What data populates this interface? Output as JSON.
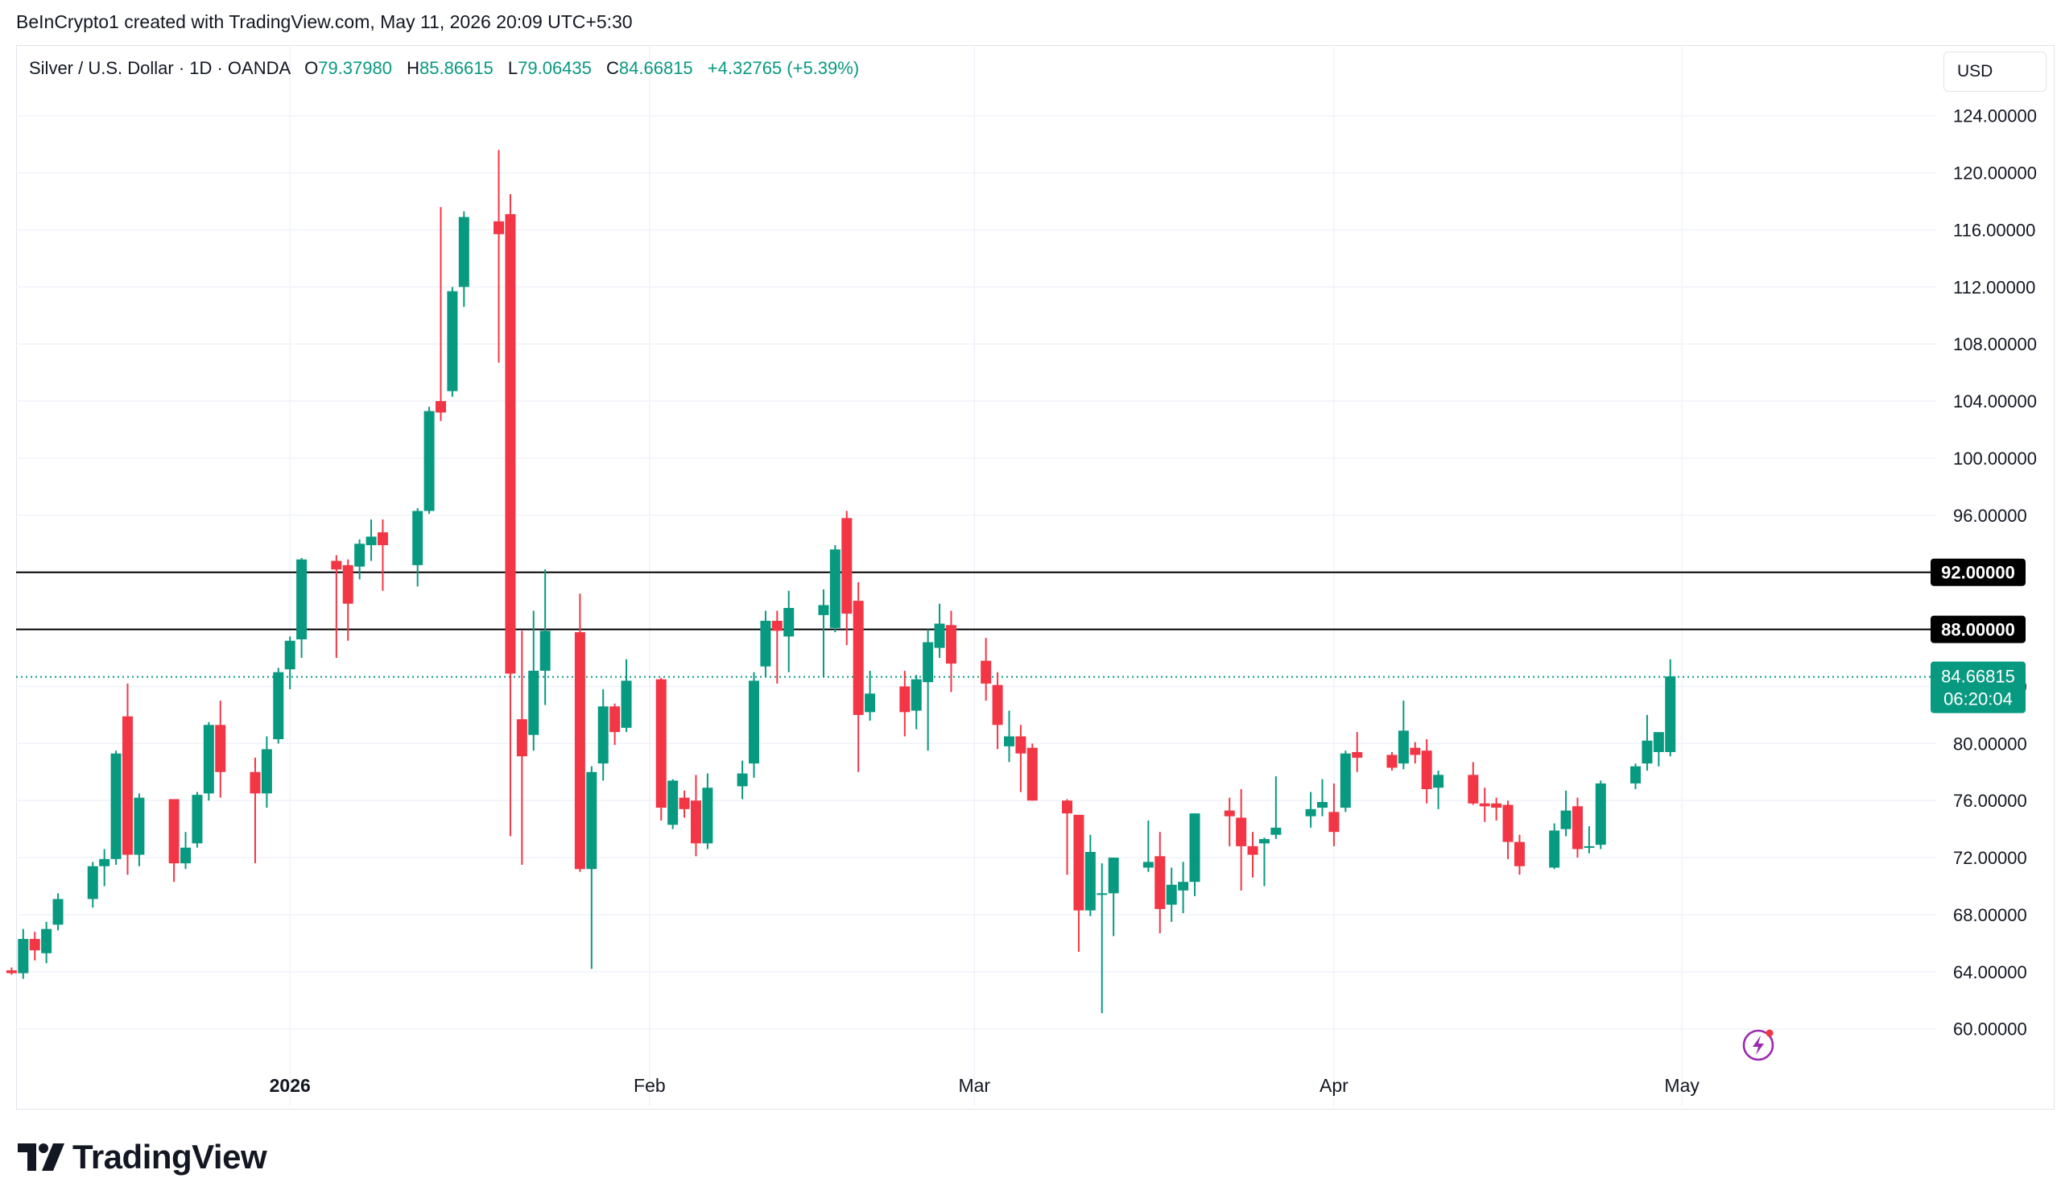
{
  "header": {
    "attribution": "BeInCrypto1 created with TradingView.com, May 11, 2026 20:09 UTC+5:30"
  },
  "legend": {
    "symbol": "Silver / U.S. Dollar · 1D · OANDA",
    "open_label": "O",
    "open": "79.37980",
    "high_label": "H",
    "high": "85.86615",
    "low_label": "L",
    "low": "79.06435",
    "close_label": "C",
    "close": "84.66815",
    "change": "+4.32765 (+5.39%)"
  },
  "currency": "USD",
  "footer": {
    "brand": "TradingView",
    "logo_mark": "17"
  },
  "colors": {
    "up": "#089981",
    "down": "#f23645",
    "grid": "#f0f3fa",
    "last_line": "#089981",
    "level_line": "#000000"
  },
  "icons": {
    "flash": "lightning-icon",
    "logo": "tradingview-logo-icon"
  },
  "chart_data": {
    "type": "candlestick",
    "ylim": [
      57.5,
      128.5
    ],
    "y_ticks": [
      124,
      120,
      116,
      112,
      108,
      104,
      100,
      96,
      92,
      88,
      84,
      80,
      76,
      72,
      68,
      64,
      60
    ],
    "y_tick_labels": [
      "124.00000",
      "120.00000",
      "116.00000",
      "112.00000",
      "108.00000",
      "104.00000",
      "100.00000",
      "96.00000",
      "92.00000",
      "88.00000",
      "84.00000",
      "80.00000",
      "76.00000",
      "72.00000",
      "68.00000",
      "64.00000",
      "60.00000"
    ],
    "x_labels": [
      {
        "label": "2026",
        "date": "2026-01-01",
        "bold": true
      },
      {
        "label": "Feb",
        "date": "2026-02-01",
        "bold": false
      },
      {
        "label": "Mar",
        "date": "2026-03-01",
        "bold": false
      },
      {
        "label": "Apr",
        "date": "2026-04-01",
        "bold": false
      },
      {
        "label": "May",
        "date": "2026-05-01",
        "bold": false
      }
    ],
    "horizontal_levels": [
      {
        "value": 92.0,
        "label": "92.00000"
      },
      {
        "value": 88.0,
        "label": "88.00000"
      }
    ],
    "last_price": {
      "value": 84.66815,
      "label": "84.66815",
      "countdown": "06:20:04"
    },
    "candles": [
      {
        "date": "2025-12-08",
        "o": 64.1,
        "h": 64.3,
        "l": 63.8,
        "c": 63.9
      },
      {
        "date": "2025-12-09",
        "o": 63.9,
        "h": 67.0,
        "l": 63.5,
        "c": 66.3
      },
      {
        "date": "2025-12-10",
        "o": 66.3,
        "h": 66.8,
        "l": 64.8,
        "c": 65.5
      },
      {
        "date": "2025-12-11",
        "o": 65.3,
        "h": 67.5,
        "l": 64.6,
        "c": 67.0
      },
      {
        "date": "2025-12-12",
        "o": 67.3,
        "h": 69.5,
        "l": 66.9,
        "c": 69.1
      },
      {
        "date": "2025-12-15",
        "o": 69.1,
        "h": 71.7,
        "l": 68.5,
        "c": 71.4
      },
      {
        "date": "2025-12-16",
        "o": 71.4,
        "h": 72.6,
        "l": 70.0,
        "c": 71.9
      },
      {
        "date": "2025-12-17",
        "o": 71.9,
        "h": 79.5,
        "l": 71.5,
        "c": 79.3
      },
      {
        "date": "2025-12-18",
        "o": 81.9,
        "h": 84.2,
        "l": 70.8,
        "c": 72.2
      },
      {
        "date": "2025-12-19",
        "o": 72.2,
        "h": 76.5,
        "l": 71.4,
        "c": 76.2
      },
      {
        "date": "2025-12-22",
        "o": 76.1,
        "h": 76.1,
        "l": 70.3,
        "c": 71.6
      },
      {
        "date": "2025-12-23",
        "o": 71.6,
        "h": 73.8,
        "l": 71.2,
        "c": 72.7
      },
      {
        "date": "2025-12-24",
        "o": 73.0,
        "h": 76.6,
        "l": 72.7,
        "c": 76.4
      },
      {
        "date": "2025-12-25",
        "o": 76.5,
        "h": 81.5,
        "l": 76.0,
        "c": 81.3
      },
      {
        "date": "2025-12-26",
        "o": 81.3,
        "h": 83.0,
        "l": 76.2,
        "c": 78.0
      },
      {
        "date": "2025-12-29",
        "o": 78.0,
        "h": 79.0,
        "l": 71.6,
        "c": 76.5
      },
      {
        "date": "2025-12-30",
        "o": 76.5,
        "h": 80.5,
        "l": 75.5,
        "c": 79.6
      },
      {
        "date": "2025-12-31",
        "o": 80.3,
        "h": 85.3,
        "l": 80.0,
        "c": 85.0
      },
      {
        "date": "2026-01-01",
        "o": 85.2,
        "h": 87.5,
        "l": 83.8,
        "c": 87.2
      },
      {
        "date": "2026-01-02",
        "o": 87.3,
        "h": 93.0,
        "l": 86.0,
        "c": 92.9
      },
      {
        "date": "2026-01-05",
        "o": 92.8,
        "h": 93.2,
        "l": 86.0,
        "c": 92.2
      },
      {
        "date": "2026-01-06",
        "o": 92.5,
        "h": 92.9,
        "l": 87.2,
        "c": 89.8
      },
      {
        "date": "2026-01-07",
        "o": 92.4,
        "h": 94.3,
        "l": 91.5,
        "c": 94.0
      },
      {
        "date": "2026-01-08",
        "o": 93.9,
        "h": 95.7,
        "l": 92.8,
        "c": 94.5
      },
      {
        "date": "2026-01-09",
        "o": 94.8,
        "h": 95.7,
        "l": 90.7,
        "c": 93.9
      },
      {
        "date": "2026-01-12",
        "o": 92.5,
        "h": 96.5,
        "l": 91.0,
        "c": 96.3
      },
      {
        "date": "2026-01-13",
        "o": 96.3,
        "h": 103.6,
        "l": 96.1,
        "c": 103.3
      },
      {
        "date": "2026-01-14",
        "o": 104.0,
        "h": 117.6,
        "l": 102.6,
        "c": 103.2
      },
      {
        "date": "2026-01-15",
        "o": 104.7,
        "h": 112.0,
        "l": 104.3,
        "c": 111.7
      },
      {
        "date": "2026-01-16",
        "o": 112.0,
        "h": 117.3,
        "l": 110.6,
        "c": 116.9
      },
      {
        "date": "2026-01-19",
        "o": 116.6,
        "h": 121.6,
        "l": 106.7,
        "c": 115.7
      },
      {
        "date": "2026-01-20",
        "o": 117.1,
        "h": 118.5,
        "l": 73.5,
        "c": 84.9
      },
      {
        "date": "2026-01-21",
        "o": 81.7,
        "h": 87.9,
        "l": 71.5,
        "c": 79.1
      },
      {
        "date": "2026-01-22",
        "o": 80.6,
        "h": 89.3,
        "l": 79.5,
        "c": 85.1
      },
      {
        "date": "2026-01-23",
        "o": 85.1,
        "h": 92.2,
        "l": 82.7,
        "c": 87.9
      },
      {
        "date": "2026-01-26",
        "o": 87.8,
        "h": 90.5,
        "l": 71.0,
        "c": 71.2
      },
      {
        "date": "2026-01-27",
        "o": 71.2,
        "h": 78.4,
        "l": 64.2,
        "c": 78.0
      },
      {
        "date": "2026-01-28",
        "o": 78.6,
        "h": 83.8,
        "l": 77.4,
        "c": 82.6
      },
      {
        "date": "2026-01-29",
        "o": 82.6,
        "h": 82.8,
        "l": 79.9,
        "c": 80.8
      },
      {
        "date": "2026-01-30",
        "o": 81.1,
        "h": 85.9,
        "l": 80.8,
        "c": 84.4
      },
      {
        "date": "2026-02-02",
        "o": 84.5,
        "h": 84.6,
        "l": 74.6,
        "c": 75.5
      },
      {
        "date": "2026-02-03",
        "o": 74.3,
        "h": 77.5,
        "l": 74.0,
        "c": 77.4
      },
      {
        "date": "2026-02-04",
        "o": 76.2,
        "h": 76.7,
        "l": 74.8,
        "c": 75.4
      },
      {
        "date": "2026-02-05",
        "o": 76.0,
        "h": 77.8,
        "l": 72.1,
        "c": 73.0
      },
      {
        "date": "2026-02-06",
        "o": 73.0,
        "h": 77.9,
        "l": 72.6,
        "c": 76.9
      },
      {
        "date": "2026-02-09",
        "o": 77.0,
        "h": 78.8,
        "l": 76.1,
        "c": 77.9
      },
      {
        "date": "2026-02-10",
        "o": 78.6,
        "h": 85.0,
        "l": 77.6,
        "c": 84.4
      },
      {
        "date": "2026-02-11",
        "o": 85.4,
        "h": 89.3,
        "l": 84.7,
        "c": 88.6
      },
      {
        "date": "2026-02-12",
        "o": 88.6,
        "h": 89.3,
        "l": 84.2,
        "c": 87.9
      },
      {
        "date": "2026-02-13",
        "o": 87.5,
        "h": 90.7,
        "l": 85.0,
        "c": 89.5
      },
      {
        "date": "2026-02-16",
        "o": 89.0,
        "h": 90.8,
        "l": 84.7,
        "c": 89.7
      },
      {
        "date": "2026-02-17",
        "o": 88.1,
        "h": 93.9,
        "l": 87.8,
        "c": 93.6
      },
      {
        "date": "2026-02-18",
        "o": 95.8,
        "h": 96.3,
        "l": 86.9,
        "c": 89.1
      },
      {
        "date": "2026-02-19",
        "o": 90.0,
        "h": 91.3,
        "l": 78.0,
        "c": 82.0
      },
      {
        "date": "2026-02-20",
        "o": 82.2,
        "h": 85.1,
        "l": 81.6,
        "c": 83.5
      },
      {
        "date": "2026-02-23",
        "o": 84.0,
        "h": 85.1,
        "l": 80.5,
        "c": 82.2
      },
      {
        "date": "2026-02-24",
        "o": 82.3,
        "h": 84.8,
        "l": 81.0,
        "c": 84.5
      },
      {
        "date": "2026-02-25",
        "o": 84.3,
        "h": 88.0,
        "l": 79.5,
        "c": 87.1
      },
      {
        "date": "2026-02-26",
        "o": 86.7,
        "h": 89.8,
        "l": 86.0,
        "c": 88.4
      },
      {
        "date": "2026-02-27",
        "o": 88.3,
        "h": 89.3,
        "l": 83.6,
        "c": 85.6
      },
      {
        "date": "2026-03-02",
        "o": 85.8,
        "h": 87.4,
        "l": 83.0,
        "c": 84.2
      },
      {
        "date": "2026-03-03",
        "o": 84.1,
        "h": 85.0,
        "l": 79.6,
        "c": 81.3
      },
      {
        "date": "2026-03-04",
        "o": 79.8,
        "h": 82.3,
        "l": 78.7,
        "c": 80.5
      },
      {
        "date": "2026-03-05",
        "o": 80.5,
        "h": 81.3,
        "l": 76.6,
        "c": 79.3
      },
      {
        "date": "2026-03-06",
        "o": 79.7,
        "h": 80.0,
        "l": 76.0,
        "c": 76.0
      },
      {
        "date": "2026-03-09",
        "o": 76.0,
        "h": 76.1,
        "l": 70.8,
        "c": 75.1
      },
      {
        "date": "2026-03-10",
        "o": 75.0,
        "h": 74.7,
        "l": 65.4,
        "c": 68.3
      },
      {
        "date": "2026-03-11",
        "o": 68.3,
        "h": 73.6,
        "l": 67.9,
        "c": 72.4
      },
      {
        "date": "2026-03-12",
        "o": 69.4,
        "h": 71.6,
        "l": 61.1,
        "c": 69.5
      },
      {
        "date": "2026-03-13",
        "o": 69.5,
        "h": 72.0,
        "l": 66.5,
        "c": 72.0
      },
      {
        "date": "2026-03-16",
        "o": 71.3,
        "h": 74.6,
        "l": 71.0,
        "c": 71.7
      },
      {
        "date": "2026-03-17",
        "o": 72.1,
        "h": 73.8,
        "l": 66.7,
        "c": 68.4
      },
      {
        "date": "2026-03-18",
        "o": 68.7,
        "h": 71.3,
        "l": 67.5,
        "c": 70.1
      },
      {
        "date": "2026-03-19",
        "o": 69.7,
        "h": 71.7,
        "l": 68.1,
        "c": 70.3
      },
      {
        "date": "2026-03-20",
        "o": 70.3,
        "h": 75.1,
        "l": 69.3,
        "c": 75.1
      },
      {
        "date": "2026-03-23",
        "o": 75.3,
        "h": 76.2,
        "l": 72.8,
        "c": 74.9
      },
      {
        "date": "2026-03-24",
        "o": 74.8,
        "h": 76.8,
        "l": 69.7,
        "c": 72.8
      },
      {
        "date": "2026-03-25",
        "o": 72.8,
        "h": 73.8,
        "l": 70.6,
        "c": 72.2
      },
      {
        "date": "2026-03-26",
        "o": 73.0,
        "h": 73.4,
        "l": 70.0,
        "c": 73.3
      },
      {
        "date": "2026-03-27",
        "o": 73.6,
        "h": 77.7,
        "l": 73.3,
        "c": 74.1
      },
      {
        "date": "2026-03-30",
        "o": 74.9,
        "h": 76.6,
        "l": 74.1,
        "c": 75.4
      },
      {
        "date": "2026-03-31",
        "o": 75.5,
        "h": 77.5,
        "l": 74.9,
        "c": 75.9
      },
      {
        "date": "2026-04-01",
        "o": 75.2,
        "h": 77.2,
        "l": 72.8,
        "c": 73.8
      },
      {
        "date": "2026-04-02",
        "o": 75.5,
        "h": 79.5,
        "l": 75.2,
        "c": 79.3
      },
      {
        "date": "2026-04-03",
        "o": 79.4,
        "h": 80.8,
        "l": 78.0,
        "c": 79.0
      },
      {
        "date": "2026-04-06",
        "o": 79.2,
        "h": 79.4,
        "l": 78.1,
        "c": 78.3
      },
      {
        "date": "2026-04-07",
        "o": 78.6,
        "h": 83.0,
        "l": 78.2,
        "c": 80.9
      },
      {
        "date": "2026-04-08",
        "o": 79.7,
        "h": 80.1,
        "l": 78.6,
        "c": 79.2
      },
      {
        "date": "2026-04-09",
        "o": 79.5,
        "h": 80.3,
        "l": 75.8,
        "c": 76.8
      },
      {
        "date": "2026-04-10",
        "o": 76.9,
        "h": 78.1,
        "l": 75.4,
        "c": 77.8
      },
      {
        "date": "2026-04-13",
        "o": 77.8,
        "h": 78.7,
        "l": 75.7,
        "c": 75.8
      },
      {
        "date": "2026-04-14",
        "o": 75.8,
        "h": 76.9,
        "l": 74.5,
        "c": 75.6
      },
      {
        "date": "2026-04-15",
        "o": 75.8,
        "h": 76.2,
        "l": 74.6,
        "c": 75.5
      },
      {
        "date": "2026-04-16",
        "o": 75.7,
        "h": 76.0,
        "l": 71.9,
        "c": 73.1
      },
      {
        "date": "2026-04-17",
        "o": 73.1,
        "h": 73.6,
        "l": 70.8,
        "c": 71.4
      },
      {
        "date": "2026-04-20",
        "o": 71.3,
        "h": 74.4,
        "l": 71.2,
        "c": 73.9
      },
      {
        "date": "2026-04-21",
        "o": 74.0,
        "h": 76.7,
        "l": 73.5,
        "c": 75.3
      },
      {
        "date": "2026-04-22",
        "o": 75.6,
        "h": 76.2,
        "l": 72.0,
        "c": 72.6
      },
      {
        "date": "2026-04-23",
        "o": 72.7,
        "h": 74.2,
        "l": 72.3,
        "c": 72.8
      },
      {
        "date": "2026-04-24",
        "o": 72.9,
        "h": 77.4,
        "l": 72.6,
        "c": 77.2
      },
      {
        "date": "2026-04-27",
        "o": 77.2,
        "h": 78.6,
        "l": 76.8,
        "c": 78.4
      },
      {
        "date": "2026-04-28",
        "o": 78.6,
        "h": 82.0,
        "l": 78.1,
        "c": 80.2
      },
      {
        "date": "2026-04-29",
        "o": 79.4,
        "h": 80.4,
        "l": 78.4,
        "c": 80.8
      },
      {
        "date": "2026-04-30",
        "o": 79.4,
        "h": 85.9,
        "l": 79.1,
        "c": 84.7
      }
    ]
  }
}
